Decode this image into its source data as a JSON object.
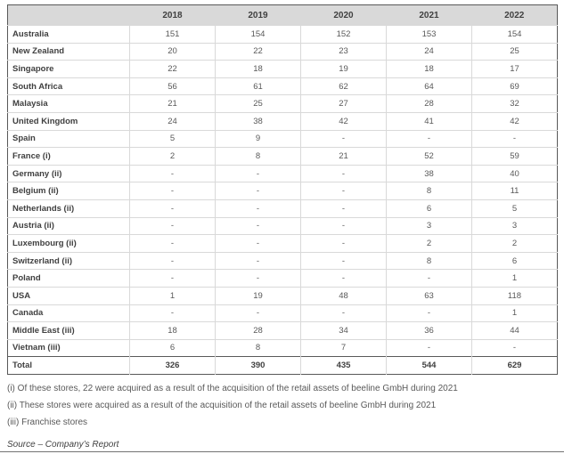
{
  "table": {
    "year_columns": [
      "2018",
      "2019",
      "2020",
      "2021",
      "2022"
    ],
    "rows": [
      {
        "label": "Australia",
        "values": [
          "151",
          "154",
          "152",
          "153",
          "154"
        ]
      },
      {
        "label": "New Zealand",
        "values": [
          "20",
          "22",
          "23",
          "24",
          "25"
        ]
      },
      {
        "label": "Singapore",
        "values": [
          "22",
          "18",
          "19",
          "18",
          "17"
        ]
      },
      {
        "label": "South Africa",
        "values": [
          "56",
          "61",
          "62",
          "64",
          "69"
        ]
      },
      {
        "label": "Malaysia",
        "values": [
          "21",
          "25",
          "27",
          "28",
          "32"
        ]
      },
      {
        "label": "United Kingdom",
        "values": [
          "24",
          "38",
          "42",
          "41",
          "42"
        ]
      },
      {
        "label": "Spain",
        "values": [
          "5",
          "9",
          "-",
          "-",
          "-"
        ]
      },
      {
        "label": "France (i)",
        "values": [
          "2",
          "8",
          "21",
          "52",
          "59"
        ]
      },
      {
        "label": "Germany (ii)",
        "values": [
          "-",
          "-",
          "-",
          "38",
          "40"
        ]
      },
      {
        "label": "Belgium (ii)",
        "values": [
          "-",
          "-",
          "-",
          "8",
          "11"
        ]
      },
      {
        "label": "Netherlands (ii)",
        "values": [
          "-",
          "-",
          "-",
          "6",
          "5"
        ]
      },
      {
        "label": "Austria (ii)",
        "values": [
          "-",
          "-",
          "-",
          "3",
          "3"
        ]
      },
      {
        "label": "Luxembourg (ii)",
        "values": [
          "-",
          "-",
          "-",
          "2",
          "2"
        ]
      },
      {
        "label": "Switzerland (ii)",
        "values": [
          "-",
          "-",
          "-",
          "8",
          "6"
        ]
      },
      {
        "label": "Poland",
        "values": [
          "-",
          "-",
          "-",
          "-",
          "1"
        ]
      },
      {
        "label": "USA",
        "values": [
          "1",
          "19",
          "48",
          "63",
          "118"
        ]
      },
      {
        "label": "Canada",
        "values": [
          "-",
          "-",
          "-",
          "-",
          "1"
        ]
      },
      {
        "label": "Middle East (iii)",
        "values": [
          "18",
          "28",
          "34",
          "36",
          "44"
        ]
      },
      {
        "label": "Vietnam (iii)",
        "values": [
          "6",
          "8",
          "7",
          "-",
          "-"
        ]
      }
    ],
    "total_row": {
      "label": "Total",
      "values": [
        "326",
        "390",
        "435",
        "544",
        "629"
      ]
    }
  },
  "footnotes": [
    "(i) Of these stores, 22 were acquired as a result of the acquisition of the retail assets of beeline GmbH during 2021",
    "(ii) These stores were acquired as a result of the acquisition of the retail assets of beeline GmbH during 2021",
    "(iii) Franchise stores"
  ],
  "source": "Source – Company’s Report",
  "colors": {
    "header_bg": "#d9d9d9",
    "dark_border": "#595959",
    "light_border": "#d9d9d9",
    "label_text": "#404040",
    "value_text": "#595959"
  }
}
